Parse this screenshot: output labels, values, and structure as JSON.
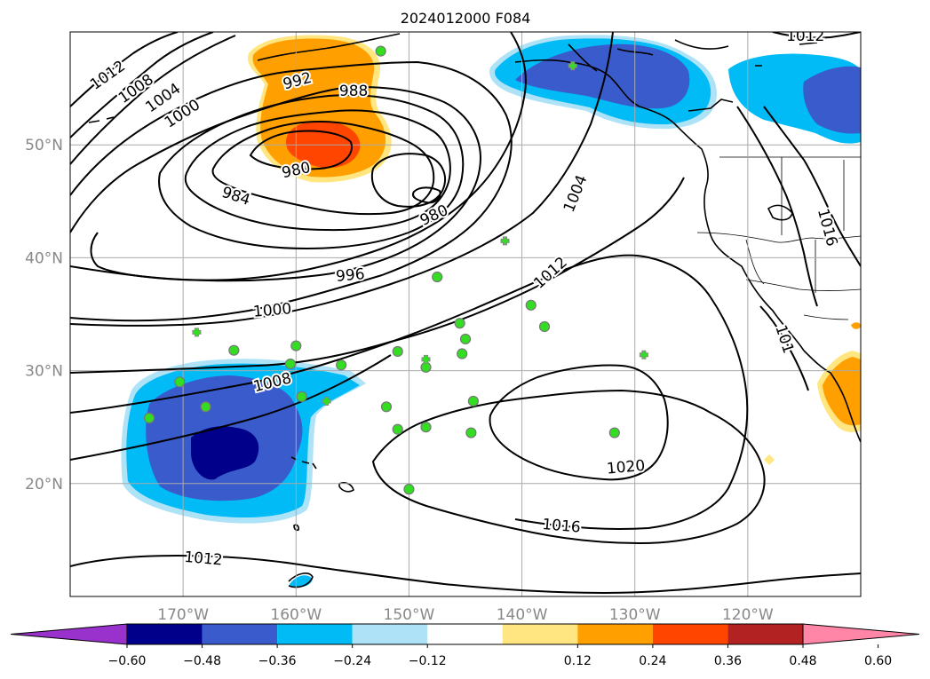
{
  "title": "2024012000 F084",
  "lon_labels": [
    {
      "lon": -170,
      "text": "170°W"
    },
    {
      "lon": -160,
      "text": "160°W"
    },
    {
      "lon": -150,
      "text": "150°W"
    },
    {
      "lon": -140,
      "text": "140°W"
    },
    {
      "lon": -130,
      "text": "130°W"
    },
    {
      "lon": -120,
      "text": "120°W"
    }
  ],
  "lat_labels": [
    {
      "lat": 20,
      "text": "20°N"
    },
    {
      "lat": 30,
      "text": "30°N"
    },
    {
      "lat": 40,
      "text": "40°N"
    },
    {
      "lat": 50,
      "text": "50°N"
    }
  ],
  "map_extent": {
    "lon_min": -180,
    "lon_max": -110,
    "lat_min": 10,
    "lat_max": 60
  },
  "colorbar": {
    "ticks": [
      "−0.60",
      "−0.48",
      "−0.36",
      "−0.24",
      "−0.12",
      "0.12",
      "0.24",
      "0.36",
      "0.48",
      "0.60"
    ],
    "colors": [
      "#9932cc",
      "#00008b",
      "#3a5bcc",
      "#00bbf5",
      "#aee2f7",
      "#ffffff",
      "#ffe680",
      "#ff9f00",
      "#ff4500",
      "#b22222",
      "#ff86a6"
    ]
  },
  "isobar_labels": [
    {
      "text": "1012",
      "lon": -176.7,
      "lat": 56.2,
      "rot": -35
    },
    {
      "text": "1008",
      "lon": -174.2,
      "lat": 55.0,
      "rot": -35
    },
    {
      "text": "1004",
      "lon": -171.8,
      "lat": 54.2,
      "rot": -35
    },
    {
      "text": "1000",
      "lon": -170.1,
      "lat": 52.8,
      "rot": -33
    },
    {
      "text": "992",
      "lon": -159.9,
      "lat": 55.7,
      "rot": -15
    },
    {
      "text": "988",
      "lon": -154.9,
      "lat": 54.8,
      "rot": 0
    },
    {
      "text": "980",
      "lon": -160.0,
      "lat": 47.8,
      "rot": -12
    },
    {
      "text": "984",
      "lon": -165.3,
      "lat": 45.5,
      "rot": 18
    },
    {
      "text": "980",
      "lon": -147.8,
      "lat": 43.8,
      "rot": -25
    },
    {
      "text": "996",
      "lon": -155.2,
      "lat": 38.5,
      "rot": -5
    },
    {
      "text": "1004",
      "lon": -135.3,
      "lat": 45.7,
      "rot": -68
    },
    {
      "text": "1012",
      "lon": -137.5,
      "lat": 38.7,
      "rot": -42
    },
    {
      "text": "1000",
      "lon": -162.1,
      "lat": 35.4,
      "rot": -5
    },
    {
      "text": "1008",
      "lon": -162.1,
      "lat": 29.0,
      "rot": -14
    },
    {
      "text": "1020",
      "lon": -130.8,
      "lat": 21.5,
      "rot": -5
    },
    {
      "text": "1016",
      "lon": -136.5,
      "lat": 16.3,
      "rot": 5
    },
    {
      "text": "1012",
      "lon": -168.2,
      "lat": 13.4,
      "rot": 5
    },
    {
      "text": "1012",
      "lon": -114.9,
      "lat": 59.7,
      "rot": 0
    },
    {
      "text": "1016",
      "lon": -112.9,
      "lat": 42.7,
      "rot": 75
    },
    {
      "text": "101",
      "lon": -116.7,
      "lat": 32.8,
      "rot": 72
    }
  ],
  "stations": {
    "circles": [
      [
        -152.5,
        58.3
      ],
      [
        -165.5,
        31.8
      ],
      [
        -170.3,
        29.0
      ],
      [
        -173.0,
        25.8
      ],
      [
        -168.0,
        26.8
      ],
      [
        -160.0,
        32.2
      ],
      [
        -160.5,
        30.6
      ],
      [
        -159.5,
        27.7
      ],
      [
        -156.0,
        30.5
      ],
      [
        -151.0,
        31.7
      ],
      [
        -148.5,
        30.3
      ],
      [
        -152.0,
        26.8
      ],
      [
        -151.0,
        24.8
      ],
      [
        -148.5,
        25.0
      ],
      [
        -147.5,
        38.3
      ],
      [
        -145.5,
        34.2
      ],
      [
        -145.0,
        32.8
      ],
      [
        -145.3,
        31.5
      ],
      [
        -144.3,
        27.3
      ],
      [
        -144.5,
        24.5
      ],
      [
        -150.0,
        19.5
      ],
      [
        -139.2,
        35.8
      ],
      [
        -138.0,
        33.9
      ],
      [
        -131.8,
        24.5
      ]
    ],
    "crosses": [
      [
        -168.8,
        33.4
      ],
      [
        -157.3,
        27.3
      ],
      [
        -148.5,
        31.0
      ],
      [
        -141.5,
        41.5
      ],
      [
        -135.5,
        57.0
      ],
      [
        -129.2,
        31.4
      ]
    ]
  }
}
